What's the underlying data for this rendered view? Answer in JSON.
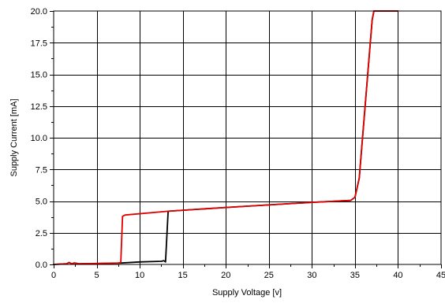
{
  "chart_data": {
    "type": "line",
    "title": "",
    "xlabel": "Supply Voltage [v]",
    "ylabel": "Supply Current [mA]",
    "xlim": [
      0,
      45
    ],
    "ylim": [
      0,
      20
    ],
    "x_ticks": [
      0,
      5,
      10,
      15,
      20,
      25,
      30,
      35,
      40,
      45
    ],
    "x_tick_labels": [
      "0",
      "5",
      "10",
      "15",
      "20",
      "25",
      "30",
      "35",
      "40",
      "45"
    ],
    "y_ticks": [
      0,
      2.5,
      5,
      7.5,
      10,
      12.5,
      15,
      17.5,
      20
    ],
    "y_tick_labels": [
      "0.0",
      "2.5",
      "5.0",
      "7.5",
      "10.0",
      "12.5",
      "15.0",
      "17.5",
      "20.0"
    ],
    "grid": true,
    "series": [
      {
        "color": "#000000",
        "points": [
          [
            0,
            0
          ],
          [
            1.5,
            0.05
          ],
          [
            1.8,
            0.15
          ],
          [
            2.1,
            0.05
          ],
          [
            2.4,
            0.12
          ],
          [
            3,
            0.05
          ],
          [
            7.5,
            0.1
          ],
          [
            10,
            0.2
          ],
          [
            12.5,
            0.25
          ],
          [
            12.8,
            0.3
          ],
          [
            13,
            0.2
          ],
          [
            13.3,
            4.2
          ],
          [
            20,
            4.5
          ],
          [
            30,
            4.9
          ],
          [
            34.5,
            5.05
          ],
          [
            35,
            5.3
          ],
          [
            35.5,
            6.8
          ],
          [
            36,
            11
          ],
          [
            37,
            19.3
          ],
          [
            37.2,
            20
          ],
          [
            40,
            20
          ]
        ]
      },
      {
        "color": "#e00000",
        "points": [
          [
            0,
            0
          ],
          [
            1.5,
            0.05
          ],
          [
            1.8,
            0.15
          ],
          [
            2.1,
            0.05
          ],
          [
            2.4,
            0.12
          ],
          [
            3,
            0.05
          ],
          [
            7.5,
            0.12
          ],
          [
            7.8,
            0.15
          ],
          [
            8,
            3.8
          ],
          [
            8.3,
            3.9
          ],
          [
            13.3,
            4.2
          ],
          [
            20,
            4.5
          ],
          [
            30,
            4.9
          ],
          [
            34.5,
            5.05
          ],
          [
            35,
            5.3
          ],
          [
            35.5,
            6.8
          ],
          [
            36,
            11
          ],
          [
            37,
            19.3
          ],
          [
            37.2,
            20
          ],
          [
            40,
            20
          ]
        ]
      }
    ]
  }
}
